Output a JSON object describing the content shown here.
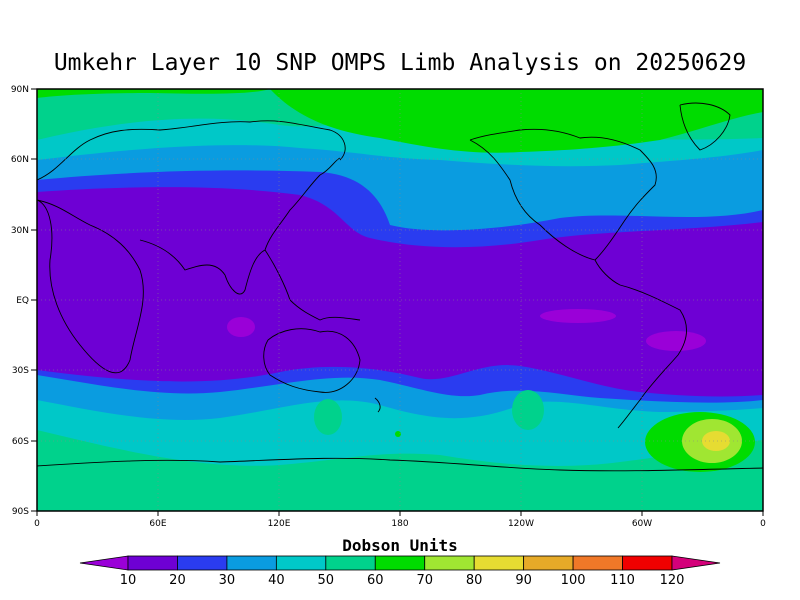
{
  "title": "Umkehr Layer 10 SNP OMPS Limb Analysis on 20250629",
  "lat_labels": [
    "90N",
    "60N",
    "30N",
    "EQ",
    "30S",
    "60S",
    "90S"
  ],
  "lon_labels": [
    "0",
    "60E",
    "120E",
    "180",
    "120W",
    "60W",
    "0"
  ],
  "colorbar": {
    "title": "Dobson Units",
    "labels": [
      "10",
      "20",
      "30",
      "40",
      "50",
      "60",
      "70",
      "80",
      "90",
      "100",
      "110",
      "120"
    ],
    "colors": [
      "#9a00d8",
      "#6e00d4",
      "#2a3cf0",
      "#0a9ce0",
      "#00c8c8",
      "#00d28c",
      "#00dc00",
      "#a0e632",
      "#e6dc32",
      "#e6aa28",
      "#f07828",
      "#f00000",
      "#d4007a"
    ]
  },
  "colors": {
    "c20": "#6e00d4",
    "c30": "#2a3cf0",
    "c40": "#0a9ce0",
    "c50": "#00c8c8",
    "c60": "#00d28c",
    "c70": "#00dc00",
    "c80": "#a0e632",
    "c90": "#e6dc32",
    "c10": "#9a00d8"
  }
}
